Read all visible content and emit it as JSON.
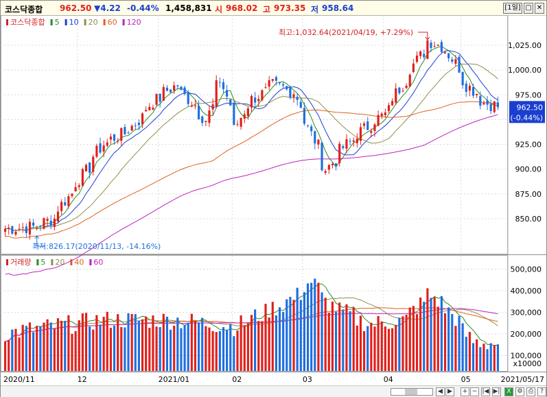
{
  "header": {
    "name": "코스닥종합",
    "price": "962.50",
    "change": "▼4.22",
    "change_pct": "-0.44%",
    "volume": "1,458,831",
    "open_label": "시",
    "open": "968.02",
    "high_label": "고",
    "high": "973.35",
    "low_label": "저",
    "low": "958.64",
    "period_btn": "[1일]"
  },
  "price_panel": {
    "legend": [
      {
        "label": "코스닥종합",
        "color": "#d42020"
      },
      {
        "label": "5",
        "color": "#2a8c2a"
      },
      {
        "label": "10",
        "color": "#1a3fd0"
      },
      {
        "label": "20",
        "color": "#8f8f4a"
      },
      {
        "label": "60",
        "color": "#e06020"
      },
      {
        "label": "120",
        "color": "#c020c0"
      }
    ],
    "y_ticks": [
      "1,025.00",
      "1,000.00",
      "975.00",
      "950.00",
      "925.00",
      "900.00",
      "875.00",
      "850.00"
    ],
    "max_annotation": "최고:1,032.64(2021/04/19, +7.29%)",
    "min_annotation": "최저:826.17(2020/11/13, -14.16%)",
    "current_price": "962.50",
    "current_pct": "(-0.44%)"
  },
  "volume_panel": {
    "legend": [
      {
        "label": "거래량",
        "color": "#d42020"
      },
      {
        "label": "5",
        "color": "#2a8c2a"
      },
      {
        "label": "20",
        "color": "#8f8f4a"
      },
      {
        "label": "40",
        "color": "#e06020"
      },
      {
        "label": "60",
        "color": "#c020c0"
      }
    ],
    "y_ticks": [
      "500,000",
      "400,000",
      "300,000",
      "200,000",
      "100,000"
    ],
    "unit": "x10000"
  },
  "x_axis": {
    "labels": [
      "2020/11",
      "12",
      "2021/01",
      "02",
      "03",
      "04",
      "05"
    ],
    "end_date": "2021/05/17"
  },
  "colors": {
    "up": "#e0201b",
    "down": "#1f6fe0",
    "ma5": "#2a8c2a",
    "ma10": "#1a3fd0",
    "ma20": "#8f8f4a",
    "ma60": "#e06020",
    "ma120": "#c020c0"
  },
  "chart_data": [
    {
      "type": "candlestick",
      "title": "코스닥종합",
      "ylim": [
        820,
        1040
      ],
      "x_start": "2020/11/02",
      "x_end": "2021/05/17",
      "anchors": [
        {
          "date": "2020/11/02",
          "close": 840
        },
        {
          "date": "2020/11/13",
          "close": 842
        },
        {
          "date": "2020/11/20",
          "close": 850
        },
        {
          "date": "2020/12/01",
          "close": 890
        },
        {
          "date": "2020/12/10",
          "close": 925
        },
        {
          "date": "2020/12/21",
          "close": 940
        },
        {
          "date": "2020/12/30",
          "close": 968
        },
        {
          "date": "2021/01/08",
          "close": 985
        },
        {
          "date": "2021/01/14",
          "close": 968
        },
        {
          "date": "2021/01/20",
          "close": 950
        },
        {
          "date": "2021/01/26",
          "close": 990
        },
        {
          "date": "2021/02/01",
          "close": 940
        },
        {
          "date": "2021/02/05",
          "close": 965
        },
        {
          "date": "2021/02/16",
          "close": 985
        },
        {
          "date": "2021/02/24",
          "close": 978
        },
        {
          "date": "2021/03/03",
          "close": 935
        },
        {
          "date": "2021/03/09",
          "close": 900
        },
        {
          "date": "2021/03/17",
          "close": 925
        },
        {
          "date": "2021/03/26",
          "close": 945
        },
        {
          "date": "2021/04/01",
          "close": 955
        },
        {
          "date": "2021/04/09",
          "close": 990
        },
        {
          "date": "2021/04/19",
          "close": 1030
        },
        {
          "date": "2021/04/26",
          "close": 1020
        },
        {
          "date": "2021/05/04",
          "close": 985
        },
        {
          "date": "2021/05/11",
          "close": 967
        },
        {
          "date": "2021/05/17",
          "close": 962.5
        }
      ],
      "max": {
        "date": "2021/04/19",
        "value": 1032.64
      },
      "min": {
        "date": "2020/11/13",
        "value": 826.17
      },
      "last_close": 962.5,
      "series": [
        {
          "name": "5"
        },
        {
          "name": "10"
        },
        {
          "name": "20"
        },
        {
          "name": "60"
        },
        {
          "name": "120"
        }
      ]
    },
    {
      "type": "bar",
      "title": "거래량",
      "ylim": [
        50000,
        520000
      ],
      "y_unit": "x10000",
      "anchors": [
        {
          "date": "2020/11/02",
          "value": 200000
        },
        {
          "date": "2020/11/20",
          "value": 230000
        },
        {
          "date": "2020/12/10",
          "value": 260000
        },
        {
          "date": "2021/01/08",
          "value": 260000
        },
        {
          "date": "2021/02/01",
          "value": 230000
        },
        {
          "date": "2021/02/24",
          "value": 360000
        },
        {
          "date": "2021/03/03",
          "value": 440000
        },
        {
          "date": "2021/03/10",
          "value": 330000
        },
        {
          "date": "2021/03/26",
          "value": 240000
        },
        {
          "date": "2021/04/09",
          "value": 260000
        },
        {
          "date": "2021/04/19",
          "value": 380000
        },
        {
          "date": "2021/04/27",
          "value": 300000
        },
        {
          "date": "2021/05/06",
          "value": 160000
        },
        {
          "date": "2021/05/17",
          "value": 150000
        }
      ],
      "series": [
        {
          "name": "5"
        },
        {
          "name": "20"
        },
        {
          "name": "40"
        },
        {
          "name": "60"
        }
      ]
    }
  ]
}
